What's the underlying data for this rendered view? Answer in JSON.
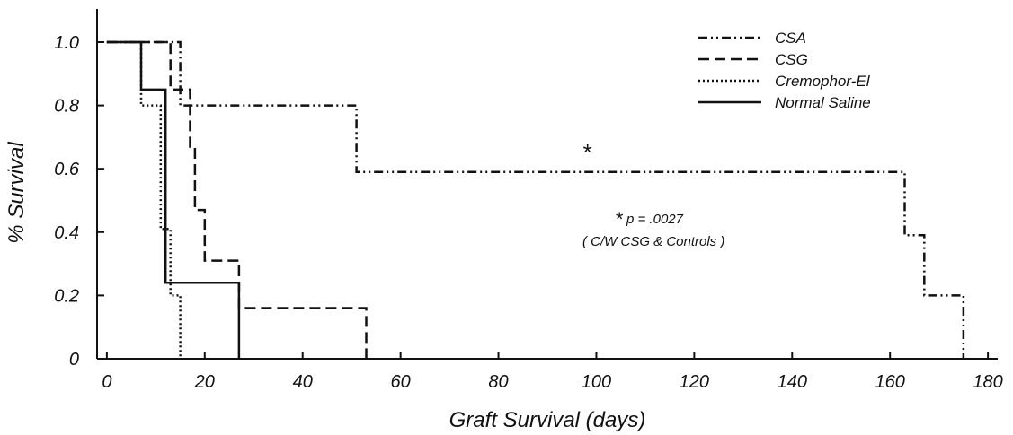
{
  "chart_data": {
    "type": "line",
    "step": true,
    "xlabel": "Graft Survival (days)",
    "ylabel": "% Survival",
    "xlim": [
      -2,
      182
    ],
    "ylim": [
      0,
      1.1
    ],
    "x_ticks": [
      0,
      20,
      40,
      60,
      80,
      100,
      120,
      140,
      160,
      180
    ],
    "x_tick_labels": [
      "0",
      "20",
      "40",
      "60",
      "80",
      "100",
      "120",
      "140",
      "160",
      "180"
    ],
    "y_ticks": [
      0,
      0.2,
      0.4,
      0.6,
      0.8,
      1.0
    ],
    "y_tick_labels": [
      "0",
      "0.2",
      "0.4",
      "0.6",
      "0.8",
      "1.0"
    ],
    "legend_position": "top-right",
    "series": [
      {
        "name": "CSA",
        "dash": "dash-dot-dot",
        "points": [
          [
            0,
            1.0
          ],
          [
            15,
            1.0
          ],
          [
            15,
            0.8
          ],
          [
            51,
            0.8
          ],
          [
            51,
            0.59
          ],
          [
            163,
            0.59
          ],
          [
            163,
            0.39
          ],
          [
            167,
            0.39
          ],
          [
            167,
            0.2
          ],
          [
            175,
            0.2
          ],
          [
            175,
            0
          ]
        ]
      },
      {
        "name": "CSG",
        "dash": "dashed",
        "points": [
          [
            0,
            1.0
          ],
          [
            13,
            1.0
          ],
          [
            13,
            0.85
          ],
          [
            17,
            0.85
          ],
          [
            17,
            0.67
          ],
          [
            18,
            0.67
          ],
          [
            18,
            0.47
          ],
          [
            20,
            0.47
          ],
          [
            20,
            0.31
          ],
          [
            27,
            0.31
          ],
          [
            27,
            0.16
          ],
          [
            53,
            0.16
          ],
          [
            53,
            0
          ]
        ]
      },
      {
        "name": "Cremophor-El",
        "dash": "dotted",
        "points": [
          [
            0,
            1.0
          ],
          [
            7,
            1.0
          ],
          [
            7,
            0.8
          ],
          [
            11,
            0.8
          ],
          [
            11,
            0.41
          ],
          [
            13,
            0.41
          ],
          [
            13,
            0.2
          ],
          [
            15,
            0.2
          ],
          [
            15,
            0
          ]
        ]
      },
      {
        "name": "Normal Saline",
        "dash": "solid",
        "points": [
          [
            0,
            1.0
          ],
          [
            7,
            1.0
          ],
          [
            7,
            0.85
          ],
          [
            12,
            0.85
          ],
          [
            12,
            0.24
          ],
          [
            27,
            0.24
          ],
          [
            27,
            0
          ]
        ]
      }
    ],
    "annotations": {
      "star_marker": "*",
      "star_x": 98,
      "star_y": 0.66,
      "p_star": "*",
      "p_label": "p = .0027",
      "p_note": "( C/W CSG & Controls )"
    }
  }
}
